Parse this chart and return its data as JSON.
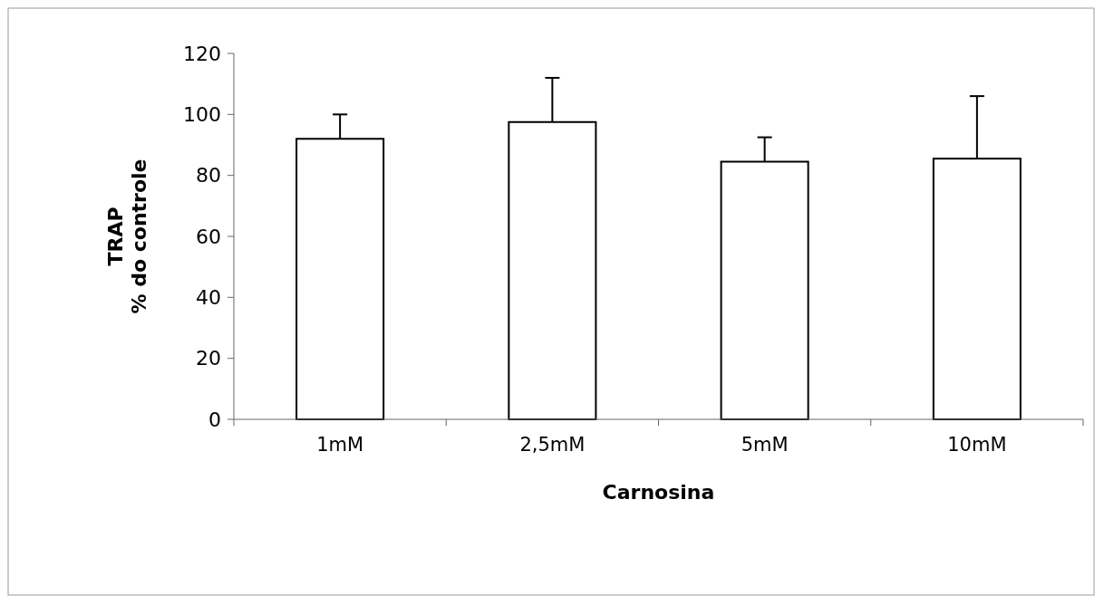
{
  "chart_data": {
    "type": "bar",
    "xlabel": "Carnosina",
    "ylabel": "TRAP\n% do controle",
    "categories": [
      "1mM",
      "2,5mM",
      "5mM",
      "10mM"
    ],
    "values": [
      92,
      97.5,
      84.5,
      85.5
    ],
    "errors": [
      [
        92,
        100
      ],
      [
        97.5,
        112
      ],
      [
        84.5,
        92.5
      ],
      [
        85.5,
        106
      ]
    ],
    "color": "#ffffff",
    "ylim": [
      0,
      120
    ],
    "yticks": [
      0,
      20,
      40,
      60,
      80,
      100,
      120
    ],
    "grid": false
  }
}
